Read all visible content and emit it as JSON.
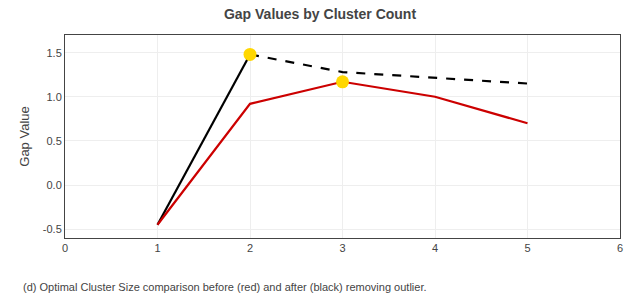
{
  "chart_data": {
    "type": "line",
    "title": "Gap Values by Cluster Count",
    "ylabel": "Gap Value",
    "caption": "(d) Optimal Cluster Size comparison before (red) and after (black) removing outlier.",
    "xlim": [
      0,
      6
    ],
    "ylim": [
      -0.6,
      1.7
    ],
    "xticks": [
      0,
      1,
      2,
      3,
      4,
      5,
      6
    ],
    "yticks": [
      -0.5,
      0.0,
      0.5,
      1.0,
      1.5
    ],
    "grid": true,
    "series": [
      {
        "type": "line",
        "color": "#000000",
        "line_style": "solid",
        "x": [
          1,
          2
        ],
        "values": [
          -0.45,
          1.48
        ]
      },
      {
        "type": "line",
        "color": "#000000",
        "line_style": "dashed",
        "x": [
          2,
          3,
          5
        ],
        "values": [
          1.48,
          1.28,
          1.15
        ]
      },
      {
        "type": "line",
        "color": "#CC0000",
        "line_style": "solid",
        "x": [
          1,
          2,
          3,
          4,
          5
        ],
        "values": [
          -0.45,
          0.92,
          1.17,
          1.0,
          0.7
        ]
      },
      {
        "type": "scatter",
        "color": "#FFD700",
        "marker": "circle",
        "x": [
          2
        ],
        "values": [
          1.48
        ]
      },
      {
        "type": "scatter",
        "color": "#FFD700",
        "marker": "circle",
        "x": [
          3
        ],
        "values": [
          1.17
        ]
      }
    ]
  }
}
